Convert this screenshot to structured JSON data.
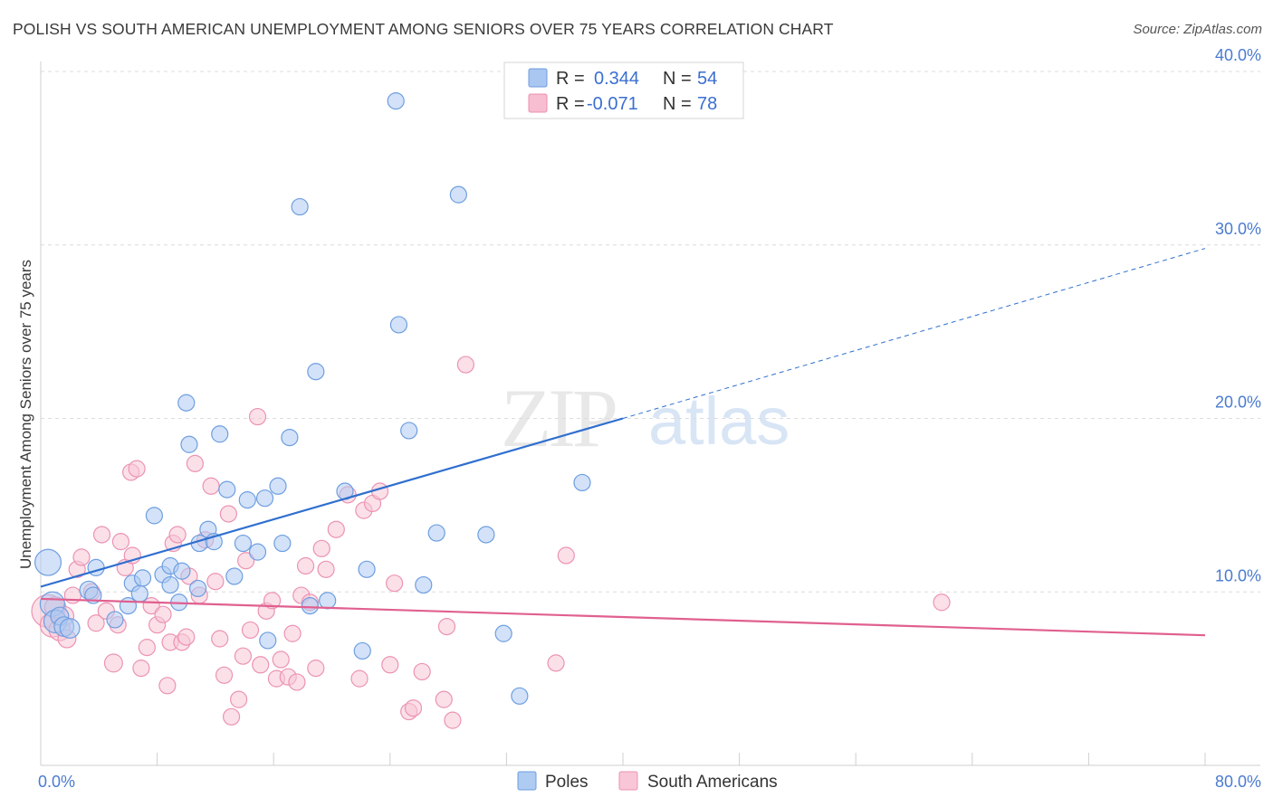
{
  "title": "POLISH VS SOUTH AMERICAN UNEMPLOYMENT AMONG SENIORS OVER 75 YEARS CORRELATION CHART",
  "source": "Source: ZipAtlas.com",
  "watermark": {
    "zip": "ZIP",
    "atlas": "atlas"
  },
  "legend_top": {
    "rows": [
      {
        "r_label": "R =",
        "r_value": "0.344",
        "n_label": "N =",
        "n_value": "54",
        "color": "#a9c7f0",
        "stroke": "#6f9be0"
      },
      {
        "r_label": "R =",
        "r_value": "-0.071",
        "n_label": "N =",
        "n_value": "78",
        "color": "#f7bdd0",
        "stroke": "#eb8fb0"
      }
    ]
  },
  "colors": {
    "poles_fill": "#aecbf2",
    "poles_stroke": "#6e9ee0",
    "poles_line": "#2f6fcf",
    "sa_fill": "#f8c6d6",
    "sa_stroke": "#ec93b3",
    "sa_line": "#e0608f",
    "tick_label": "#4a7bd0",
    "grid": "#dcdcdc"
  },
  "chart_data": {
    "type": "scatter",
    "title": "POLISH VS SOUTH AMERICAN UNEMPLOYMENT AMONG SENIORS OVER 75 YEARS CORRELATION CHART",
    "xlabel": "",
    "ylabel": "Unemployment Among Seniors over 75 years",
    "xlim": [
      0,
      80
    ],
    "ylim": [
      0,
      40
    ],
    "x_tick_labels": [
      "0.0%",
      "80.0%"
    ],
    "y_ticks": [
      10,
      20,
      30,
      40
    ],
    "y_tick_labels": [
      "10.0%",
      "20.0%",
      "30.0%",
      "40.0%"
    ],
    "grid": true,
    "legend": "bottom-center",
    "series": [
      {
        "name": "Poles",
        "trend": {
          "x": [
            0,
            40,
            80
          ],
          "y": [
            10.3,
            20.0,
            29.8
          ],
          "solid_until": 40
        },
        "points": [
          [
            0.5,
            11.7,
            1.6
          ],
          [
            0.8,
            9.3,
            1.5
          ],
          [
            1.0,
            8.3,
            1.4
          ],
          [
            1.3,
            8.6,
            1.1
          ],
          [
            1.6,
            8.0,
            1.2
          ],
          [
            2.0,
            7.9,
            1.2
          ],
          [
            3.3,
            10.1,
            1.1
          ],
          [
            3.6,
            9.8,
            1.0
          ],
          [
            3.8,
            11.4,
            1.0
          ],
          [
            5.1,
            8.4,
            1.0
          ],
          [
            6.0,
            9.2,
            1.0
          ],
          [
            6.3,
            10.5,
            1.0
          ],
          [
            6.8,
            9.9,
            1.0
          ],
          [
            7.0,
            10.8,
            1.0
          ],
          [
            8.4,
            11.0,
            1.0
          ],
          [
            8.9,
            10.4,
            1.0
          ],
          [
            7.8,
            14.4,
            1.0
          ],
          [
            8.9,
            11.5,
            1.0
          ],
          [
            9.5,
            9.4,
            1.0
          ],
          [
            9.7,
            11.2,
            1.0
          ],
          [
            10.0,
            20.9,
            1.0
          ],
          [
            10.2,
            18.5,
            1.0
          ],
          [
            10.8,
            10.2,
            1.0
          ],
          [
            10.9,
            12.8,
            1.0
          ],
          [
            11.5,
            13.6,
            1.0
          ],
          [
            11.9,
            12.9,
            1.0
          ],
          [
            12.3,
            19.1,
            1.0
          ],
          [
            12.8,
            15.9,
            1.0
          ],
          [
            13.3,
            10.9,
            1.0
          ],
          [
            13.9,
            12.8,
            1.0
          ],
          [
            14.2,
            15.3,
            1.0
          ],
          [
            14.9,
            12.3,
            1.0
          ],
          [
            15.4,
            15.4,
            1.0
          ],
          [
            15.6,
            7.2,
            1.0
          ],
          [
            16.3,
            16.1,
            1.0
          ],
          [
            16.6,
            12.8,
            1.0
          ],
          [
            17.1,
            18.9,
            1.0
          ],
          [
            17.8,
            32.2,
            1.0
          ],
          [
            18.5,
            9.2,
            1.0
          ],
          [
            18.9,
            22.7,
            1.0
          ],
          [
            19.7,
            9.5,
            1.0
          ],
          [
            20.9,
            15.8,
            1.0
          ],
          [
            22.1,
            6.6,
            1.0
          ],
          [
            22.4,
            11.3,
            1.0
          ],
          [
            24.4,
            38.3,
            1.0
          ],
          [
            24.6,
            25.4,
            1.0
          ],
          [
            25.3,
            19.3,
            1.0
          ],
          [
            26.3,
            10.4,
            1.0
          ],
          [
            27.2,
            13.4,
            1.0
          ],
          [
            28.7,
            32.9,
            1.0
          ],
          [
            30.6,
            13.3,
            1.0
          ],
          [
            31.8,
            7.6,
            1.0
          ],
          [
            32.9,
            4.0,
            1.0
          ],
          [
            37.2,
            16.3,
            1.0
          ]
        ]
      },
      {
        "name": "South Americans",
        "trend": {
          "x": [
            0,
            80
          ],
          "y": [
            9.6,
            7.5
          ]
        },
        "points": [
          [
            0.5,
            8.9,
            2.0
          ],
          [
            0.8,
            8.1,
            1.5
          ],
          [
            1.0,
            9.1,
            1.3
          ],
          [
            1.3,
            7.8,
            1.3
          ],
          [
            1.6,
            8.6,
            1.2
          ],
          [
            1.8,
            7.3,
            1.1
          ],
          [
            2.2,
            9.8,
            1.0
          ],
          [
            2.5,
            11.3,
            1.0
          ],
          [
            2.8,
            12.0,
            1.0
          ],
          [
            3.5,
            10.0,
            1.0
          ],
          [
            3.8,
            8.2,
            1.0
          ],
          [
            4.2,
            13.3,
            1.0
          ],
          [
            4.5,
            8.9,
            1.0
          ],
          [
            5.0,
            5.9,
            1.1
          ],
          [
            5.3,
            8.1,
            1.0
          ],
          [
            5.5,
            12.9,
            1.0
          ],
          [
            5.8,
            11.4,
            1.0
          ],
          [
            6.2,
            16.9,
            1.0
          ],
          [
            6.3,
            12.1,
            1.0
          ],
          [
            6.6,
            17.1,
            1.0
          ],
          [
            6.9,
            5.6,
            1.0
          ],
          [
            7.3,
            6.8,
            1.0
          ],
          [
            7.6,
            9.2,
            1.0
          ],
          [
            8.0,
            8.1,
            1.0
          ],
          [
            8.4,
            8.7,
            1.0
          ],
          [
            8.7,
            4.6,
            1.0
          ],
          [
            8.9,
            7.1,
            1.0
          ],
          [
            9.1,
            12.8,
            1.0
          ],
          [
            9.4,
            13.3,
            1.0
          ],
          [
            9.7,
            7.1,
            1.0
          ],
          [
            10.0,
            7.4,
            1.0
          ],
          [
            10.2,
            10.9,
            1.0
          ],
          [
            10.6,
            17.4,
            1.0
          ],
          [
            10.9,
            9.8,
            1.0
          ],
          [
            11.3,
            13.0,
            1.0
          ],
          [
            11.7,
            16.1,
            1.0
          ],
          [
            12.0,
            10.6,
            1.0
          ],
          [
            12.3,
            7.3,
            1.0
          ],
          [
            12.6,
            5.2,
            1.0
          ],
          [
            12.9,
            14.5,
            1.0
          ],
          [
            13.1,
            2.8,
            1.0
          ],
          [
            13.6,
            3.8,
            1.0
          ],
          [
            13.9,
            6.3,
            1.0
          ],
          [
            14.1,
            11.8,
            1.0
          ],
          [
            14.4,
            7.8,
            1.0
          ],
          [
            14.9,
            20.1,
            1.0
          ],
          [
            15.1,
            5.8,
            1.0
          ],
          [
            15.5,
            8.9,
            1.0
          ],
          [
            15.9,
            9.5,
            1.0
          ],
          [
            16.2,
            5.0,
            1.0
          ],
          [
            16.5,
            6.1,
            1.0
          ],
          [
            17.0,
            5.1,
            1.0
          ],
          [
            17.3,
            7.6,
            1.0
          ],
          [
            17.6,
            4.8,
            1.0
          ],
          [
            17.9,
            9.8,
            1.0
          ],
          [
            18.2,
            11.5,
            1.0
          ],
          [
            18.5,
            9.4,
            1.0
          ],
          [
            18.9,
            5.6,
            1.0
          ],
          [
            19.3,
            12.5,
            1.0
          ],
          [
            19.6,
            11.3,
            1.0
          ],
          [
            20.3,
            13.6,
            1.0
          ],
          [
            21.1,
            15.6,
            1.0
          ],
          [
            21.9,
            5.0,
            1.0
          ],
          [
            22.2,
            14.7,
            1.0
          ],
          [
            22.8,
            15.1,
            1.0
          ],
          [
            23.3,
            15.8,
            1.0
          ],
          [
            24.0,
            5.8,
            1.0
          ],
          [
            24.3,
            10.5,
            1.0
          ],
          [
            25.3,
            3.1,
            1.0
          ],
          [
            25.6,
            3.3,
            1.0
          ],
          [
            26.2,
            5.4,
            1.0
          ],
          [
            27.7,
            3.8,
            1.0
          ],
          [
            27.9,
            8.0,
            1.0
          ],
          [
            28.3,
            2.6,
            1.0
          ],
          [
            29.2,
            23.1,
            1.0
          ],
          [
            35.4,
            5.9,
            1.0
          ],
          [
            36.1,
            12.1,
            1.0
          ],
          [
            61.9,
            9.4,
            1.0
          ]
        ]
      }
    ]
  },
  "legend_bottom": {
    "items": [
      "Poles",
      "South Americans"
    ]
  }
}
